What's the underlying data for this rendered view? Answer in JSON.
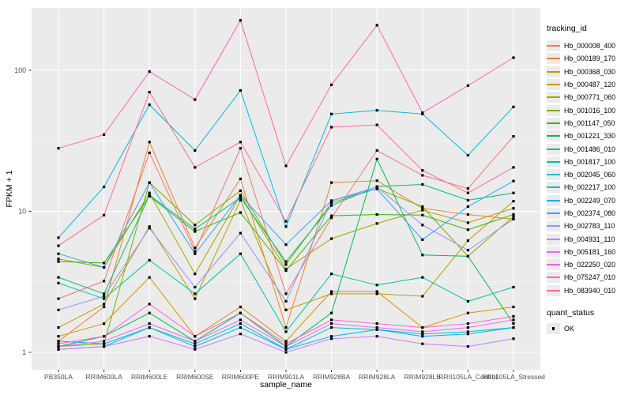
{
  "colors": {
    "page_bg": "#FFFFFF",
    "panel_bg": "#EBEBEB",
    "grid": "#FFFFFF",
    "tick_text": "#4D4D4D",
    "tick_mark": "#333333",
    "axis_title": "#000000",
    "point": "#000000",
    "legend_key_bg": "#EBEBEB"
  },
  "chart_data": {
    "type": "line",
    "title": "",
    "xlabel": "sample_name",
    "ylabel": "FPKM + 1",
    "y_scale": "log10",
    "ylim": [
      0.82,
      285
    ],
    "y_major_ticks": [
      1,
      10,
      100
    ],
    "y_minor_ticks": [
      3.1623,
      31.623
    ],
    "grid": "white major and minor gridlines on gray panel",
    "legend_position": "right",
    "legend_title": "tracking_id",
    "point_marker": "black square",
    "quant_legend": {
      "title": "quant_status",
      "items": [
        "OK"
      ],
      "marker": "black-square"
    },
    "categories": [
      "PB350LA",
      "RRIM600LA",
      "RRIM600LE",
      "RRIM600SE",
      "RRIM600PE",
      "RRIM901LA",
      "RRIM928BA",
      "RRIM928LA",
      "RRIM928LB",
      "RRII105LA_Control",
      "RRII105LA_Stressed"
    ],
    "series": [
      {
        "name": "Hb_000008_400",
        "color": "#F8766D",
        "values": [
          2.4,
          3.2,
          26,
          5.2,
          28,
          2.6,
          9,
          27,
          18,
          14.5,
          34
        ]
      },
      {
        "name": "Hb_000189_170",
        "color": "#EA8331",
        "values": [
          1.2,
          2.1,
          31,
          5.5,
          17,
          1.5,
          16,
          16.5,
          10.5,
          9.5,
          8.8
        ]
      },
      {
        "name": "Hb_000368_030",
        "color": "#D89000",
        "values": [
          1.3,
          1.6,
          3.4,
          1.3,
          2.1,
          1.2,
          2.7,
          2.7,
          1.5,
          1.9,
          2.1
        ]
      },
      {
        "name": "Hb_000487_120",
        "color": "#C09B00",
        "values": [
          1.5,
          2.2,
          7.8,
          2.4,
          12,
          2.0,
          2.6,
          2.6,
          2.5,
          6.2,
          11.8
        ]
      },
      {
        "name": "Hb_000771_060",
        "color": "#A3A500",
        "values": [
          4.6,
          4.0,
          13.5,
          3.6,
          13,
          3.9,
          6.4,
          8.2,
          10.2,
          8.3,
          10.5
        ]
      },
      {
        "name": "Hb_001016_100",
        "color": "#7CAE00",
        "values": [
          1.1,
          1.15,
          16,
          8.0,
          14,
          4.2,
          11.5,
          14.5,
          10.8,
          4.8,
          9.2
        ]
      },
      {
        "name": "Hb_001147_050",
        "color": "#39B600",
        "values": [
          4.4,
          4.3,
          12.8,
          7.2,
          9.8,
          3.8,
          9.3,
          9.5,
          9.4,
          7.4,
          9.5
        ]
      },
      {
        "name": "Hb_001221_330",
        "color": "#00BB4E",
        "values": [
          1.1,
          1.3,
          1.9,
          1.2,
          1.9,
          1.1,
          1.9,
          23.5,
          4.9,
          4.8,
          1.6
        ]
      },
      {
        "name": "Hb_001486_010",
        "color": "#00BF7D",
        "values": [
          3.4,
          2.6,
          13,
          7.5,
          12.5,
          4.4,
          11,
          15,
          15.5,
          12,
          13.5
        ]
      },
      {
        "name": "Hb_001817_100",
        "color": "#00C1A3",
        "values": [
          3.1,
          2.4,
          4.5,
          2.6,
          5.0,
          1.4,
          3.6,
          3.0,
          3.4,
          2.3,
          2.9
        ]
      },
      {
        "name": "Hb_002045_060",
        "color": "#00BFC4",
        "values": [
          1.05,
          1.1,
          1.5,
          1.15,
          1.6,
          1.05,
          1.5,
          1.45,
          1.35,
          1.4,
          1.5
        ]
      },
      {
        "name": "Hb_002217_100",
        "color": "#00BAE0",
        "values": [
          6.5,
          14.9,
          57,
          27,
          72,
          7.8,
          49,
          52,
          49,
          25,
          55
        ]
      },
      {
        "name": "Hb_002249_070",
        "color": "#00B0F6",
        "values": [
          1.2,
          1.15,
          1.5,
          1.1,
          1.5,
          1.05,
          1.3,
          1.45,
          1.3,
          1.35,
          1.5
        ]
      },
      {
        "name": "Hb_002374_080",
        "color": "#35A2FF",
        "values": [
          5.0,
          4.0,
          16,
          5.0,
          13,
          5.8,
          11.9,
          14.4,
          6.3,
          10.8,
          16.4
        ]
      },
      {
        "name": "Hb_002783_110",
        "color": "#9590FF",
        "values": [
          2.0,
          2.5,
          7.6,
          2.9,
          7.0,
          2.3,
          11.9,
          14.9,
          8.0,
          5.3,
          8.8
        ]
      },
      {
        "name": "Hb_004931_110",
        "color": "#C77CFF",
        "values": [
          1.05,
          1.1,
          1.3,
          1.05,
          1.35,
          1.0,
          1.25,
          1.3,
          1.15,
          1.1,
          1.25
        ]
      },
      {
        "name": "Hb_005181_160",
        "color": "#E76BF3",
        "values": [
          1.1,
          1.2,
          1.6,
          1.2,
          1.7,
          1.1,
          1.6,
          1.5,
          1.4,
          1.5,
          1.7
        ]
      },
      {
        "name": "Hb_022250_020",
        "color": "#FA62DB",
        "values": [
          1.15,
          1.3,
          2.2,
          1.3,
          1.9,
          1.15,
          1.7,
          1.6,
          1.5,
          1.6,
          1.8
        ]
      },
      {
        "name": "Hb_075247_010",
        "color": "#FF62BC",
        "values": [
          28,
          35,
          98,
          62,
          226,
          21,
          79,
          209,
          50,
          78,
          123
        ]
      },
      {
        "name": "Hb_083940_010",
        "color": "#FF6A98",
        "values": [
          5.7,
          9.4,
          70,
          20.5,
          31,
          8.5,
          39.5,
          41,
          19.5,
          13.5,
          20.5
        ]
      }
    ]
  }
}
